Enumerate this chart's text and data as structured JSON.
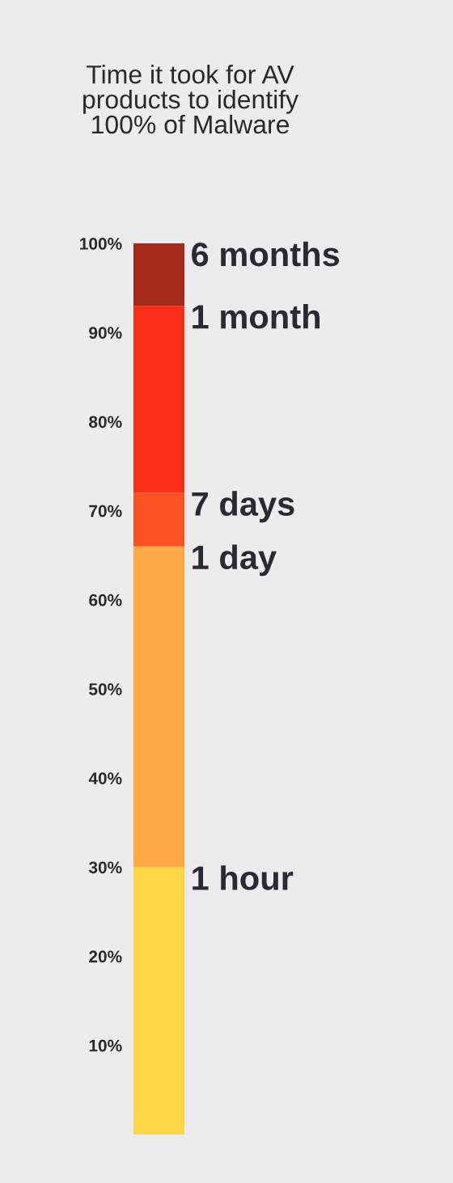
{
  "chart_data": {
    "type": "bar",
    "stacked": true,
    "title": "Time it took for AV\nproducts to identify\n100% of Malware",
    "categories": [
      null
    ],
    "series": [
      {
        "name": "1 hour",
        "color": "#fdd744",
        "values": [
          30
        ]
      },
      {
        "name": "1 day",
        "color": "#fba845",
        "values": [
          36
        ]
      },
      {
        "name": "7 days",
        "color": "#fd5023",
        "values": [
          6
        ]
      },
      {
        "name": "1 month",
        "color": "#fb2f19",
        "values": [
          21
        ]
      },
      {
        "name": "6 months",
        "color": "#a52a1a",
        "values": [
          7
        ]
      }
    ],
    "ylim": [
      0,
      100
    ],
    "yticks": [
      {
        "value": 10,
        "label": "10%"
      },
      {
        "value": 20,
        "label": "20%"
      },
      {
        "value": 30,
        "label": "30%"
      },
      {
        "value": 40,
        "label": "40%"
      },
      {
        "value": 50,
        "label": "50%"
      },
      {
        "value": 60,
        "label": "60%"
      },
      {
        "value": 70,
        "label": "70%"
      },
      {
        "value": 80,
        "label": "80%"
      },
      {
        "value": 90,
        "label": "90%"
      },
      {
        "value": 100,
        "label": "100%"
      }
    ],
    "grid": false,
    "legend": false
  }
}
